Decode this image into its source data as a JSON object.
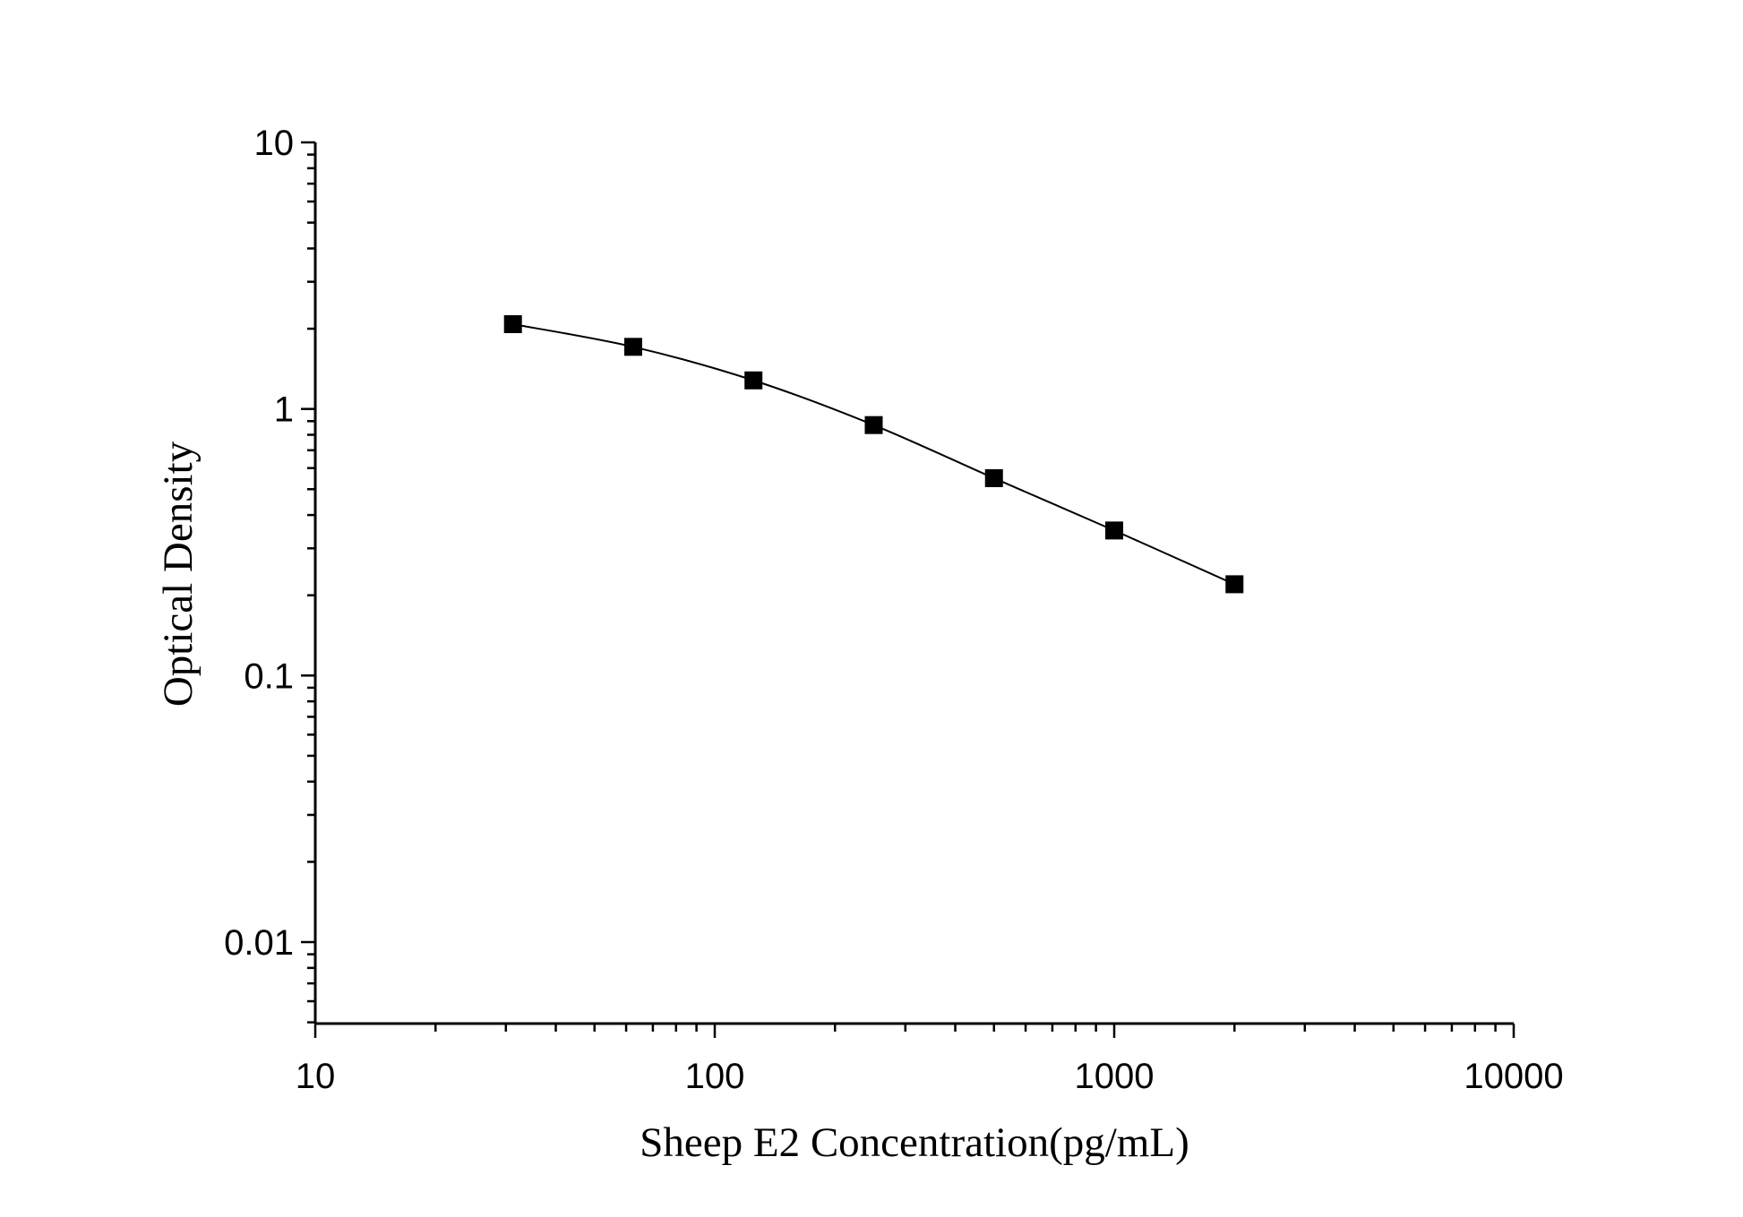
{
  "chart_data": {
    "type": "scatter",
    "title": "",
    "xlabel": "Sheep E2 Concentration(pg/mL)",
    "ylabel": "Optical Density",
    "x_scale": "log",
    "y_scale": "log",
    "xlim": [
      10,
      10000
    ],
    "ylim": [
      0.005,
      10
    ],
    "x_ticks": [
      "10",
      "100",
      "1000",
      "10000"
    ],
    "y_ticks": [
      "0.01",
      "0.1",
      "1",
      "10"
    ],
    "grid": false,
    "legend": "none",
    "marker": "square",
    "line": "smooth fitted curve",
    "color": "#000000",
    "series": [
      {
        "x": [
          31.25,
          62.5,
          125,
          250,
          500,
          1000,
          2000
        ],
        "y": [
          2.08,
          1.71,
          1.28,
          0.87,
          0.55,
          0.35,
          0.22
        ]
      }
    ]
  }
}
